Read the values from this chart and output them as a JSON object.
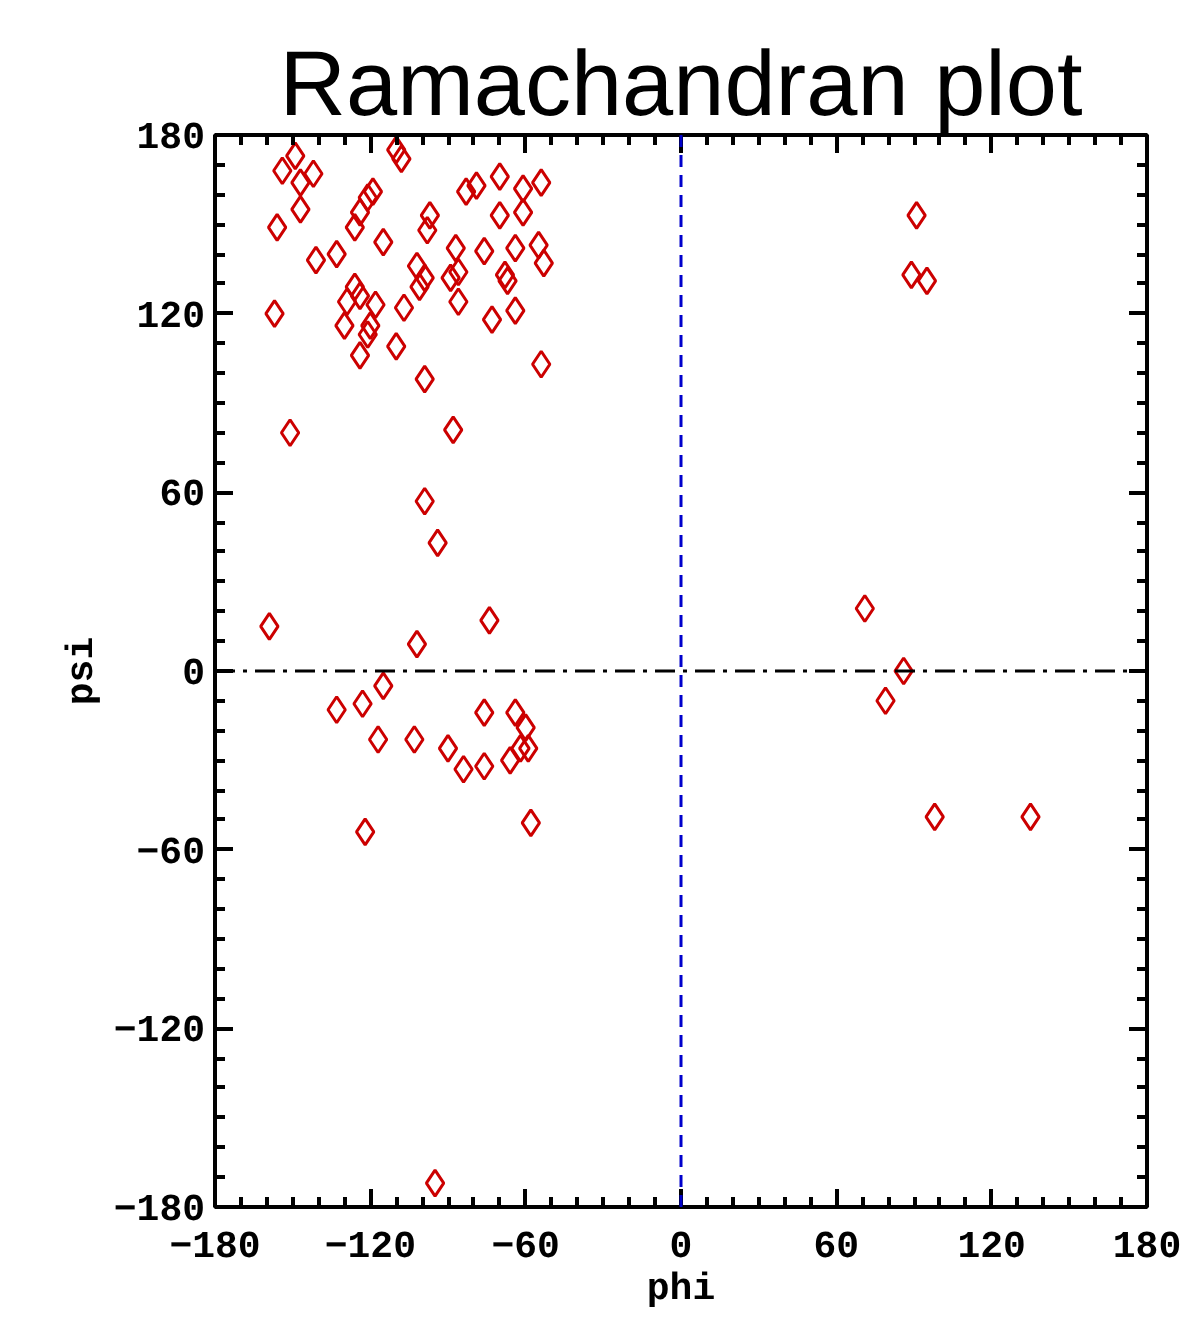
{
  "chart_data": {
    "type": "scatter",
    "title": "Ramachandran plot",
    "xlabel": "phi",
    "ylabel": "psi",
    "xlim": [
      -180,
      180
    ],
    "ylim": [
      -180,
      180
    ],
    "xticks": [
      -180,
      -120,
      -60,
      0,
      60,
      120,
      180
    ],
    "yticks": [
      -180,
      -120,
      -60,
      0,
      60,
      120,
      180
    ],
    "marker": "diamond",
    "grid": false,
    "series": [
      {
        "color": "#cc0000",
        "x": [
          -149,
          -154,
          -147,
          -142,
          -147,
          -156,
          -110,
          -108,
          -119,
          -121,
          -124,
          -126,
          -115,
          -141,
          -133,
          -97,
          -98,
          -102,
          -99,
          -101,
          -87,
          -86,
          -89,
          -86,
          -83,
          -79,
          -70,
          -61,
          -54,
          -70,
          -61,
          -76,
          -64,
          -55,
          -53,
          -68,
          -67,
          -129,
          -126,
          -124,
          -118,
          -157,
          -130,
          -120,
          -121,
          -107,
          -110,
          -124,
          -99,
          -73,
          -64,
          -54,
          -151,
          -88,
          -99,
          -94,
          -159,
          -74,
          -102,
          -115,
          -133,
          -123,
          -117,
          -103,
          -90,
          -84,
          -76,
          -76,
          -64,
          -60,
          -66,
          -62,
          -59,
          -122,
          -58,
          -95,
          91,
          89,
          95,
          71,
          86,
          79,
          98,
          135
        ],
        "values": [
          173,
          168,
          164,
          167,
          155,
          149,
          175,
          172,
          161,
          159,
          154,
          149,
          144,
          138,
          140,
          153,
          148,
          136,
          132,
          129,
          142,
          134,
          132,
          124,
          161,
          163,
          166,
          162,
          164,
          153,
          154,
          141,
          142,
          143,
          137,
          133,
          131,
          124,
          129,
          126,
          123,
          120,
          116,
          116,
          113,
          122,
          109,
          106,
          98,
          118,
          121,
          103,
          80,
          81,
          57,
          43,
          15,
          17,
          9,
          -5,
          -13,
          -11,
          -23,
          -23,
          -26,
          -33,
          -32,
          -14,
          -14,
          -19,
          -30,
          -26,
          -26,
          -54,
          -51,
          -172,
          153,
          133,
          131,
          21,
          0,
          -10,
          -49,
          -49
        ]
      }
    ],
    "ref_lines": [
      {
        "axis": "x",
        "value": 0,
        "color": "#0000cc",
        "line_style": "dashed"
      },
      {
        "axis": "y",
        "value": 0,
        "color": "#000000",
        "line_style": "dashdot"
      }
    ]
  }
}
